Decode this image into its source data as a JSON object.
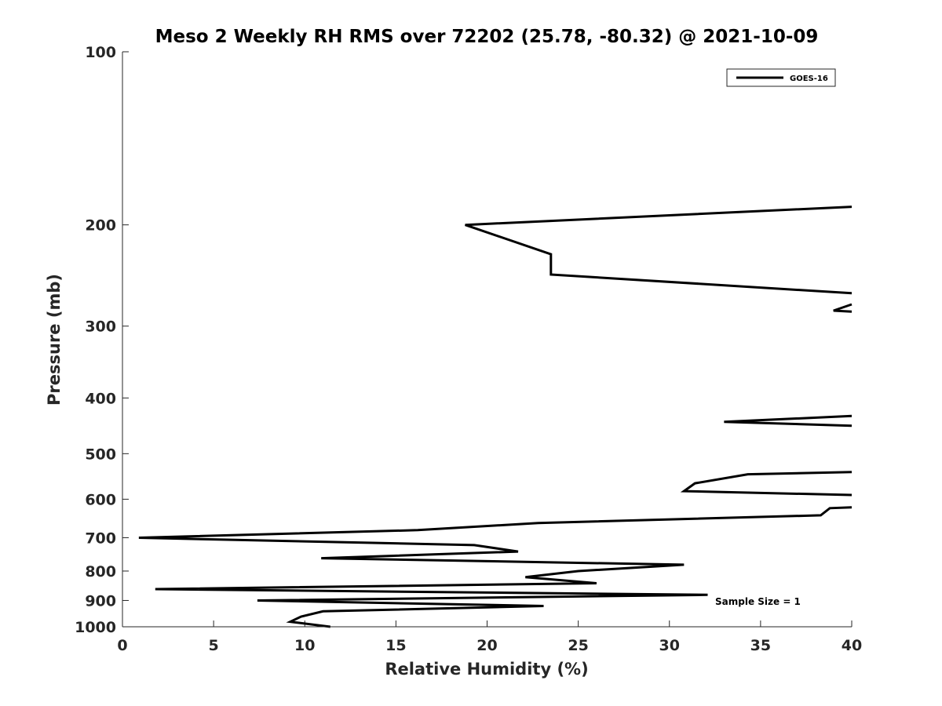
{
  "chart_data": {
    "type": "line",
    "title": "Meso 2 Weekly RH RMS over 72202 (25.78, -80.32) @ 2021-10-09",
    "xlabel": "Relative Humidity (%)",
    "ylabel": "Pressure (mb)",
    "xlim": [
      0,
      40
    ],
    "ylim": [
      100,
      1000
    ],
    "yscale": "log",
    "y_reversed": true,
    "grid": false,
    "legend_position": "top-right",
    "x_ticks": [
      0,
      5,
      10,
      15,
      20,
      25,
      30,
      35,
      40
    ],
    "y_ticks": [
      100,
      200,
      300,
      400,
      500,
      600,
      700,
      800,
      900,
      1000
    ],
    "annotation": "Sample Size = 1",
    "series": [
      {
        "name": "GOES-16",
        "color": "#000000",
        "segments": [
          [
            {
              "x": 40.0,
              "y": 186
            },
            {
              "x": 18.8,
              "y": 200
            },
            {
              "x": 23.5,
              "y": 225
            },
            {
              "x": 23.5,
              "y": 244
            },
            {
              "x": 40.0,
              "y": 263
            }
          ],
          [
            {
              "x": 40.0,
              "y": 275
            },
            {
              "x": 39.0,
              "y": 282
            },
            {
              "x": 40.0,
              "y": 283
            }
          ],
          [
            {
              "x": 40.0,
              "y": 430
            },
            {
              "x": 33.0,
              "y": 440
            },
            {
              "x": 40.0,
              "y": 447
            }
          ],
          [
            {
              "x": 40.0,
              "y": 538
            },
            {
              "x": 34.3,
              "y": 543
            },
            {
              "x": 31.4,
              "y": 563
            },
            {
              "x": 30.8,
              "y": 581
            },
            {
              "x": 40.0,
              "y": 590
            }
          ],
          [
            {
              "x": 40.0,
              "y": 620
            },
            {
              "x": 38.8,
              "y": 622
            },
            {
              "x": 38.3,
              "y": 640
            },
            {
              "x": 22.8,
              "y": 660
            },
            {
              "x": 16.2,
              "y": 679
            },
            {
              "x": 0.9,
              "y": 700
            },
            {
              "x": 19.3,
              "y": 721
            },
            {
              "x": 21.7,
              "y": 740
            },
            {
              "x": 10.9,
              "y": 760
            },
            {
              "x": 30.8,
              "y": 780
            },
            {
              "x": 25.0,
              "y": 800
            },
            {
              "x": 22.1,
              "y": 820
            },
            {
              "x": 26.0,
              "y": 840
            },
            {
              "x": 1.8,
              "y": 860
            },
            {
              "x": 32.1,
              "y": 880
            },
            {
              "x": 7.4,
              "y": 900
            },
            {
              "x": 23.1,
              "y": 920
            },
            {
              "x": 11.0,
              "y": 940
            },
            {
              "x": 9.8,
              "y": 960
            },
            {
              "x": 9.2,
              "y": 980
            },
            {
              "x": 11.4,
              "y": 1000
            }
          ]
        ]
      }
    ]
  }
}
